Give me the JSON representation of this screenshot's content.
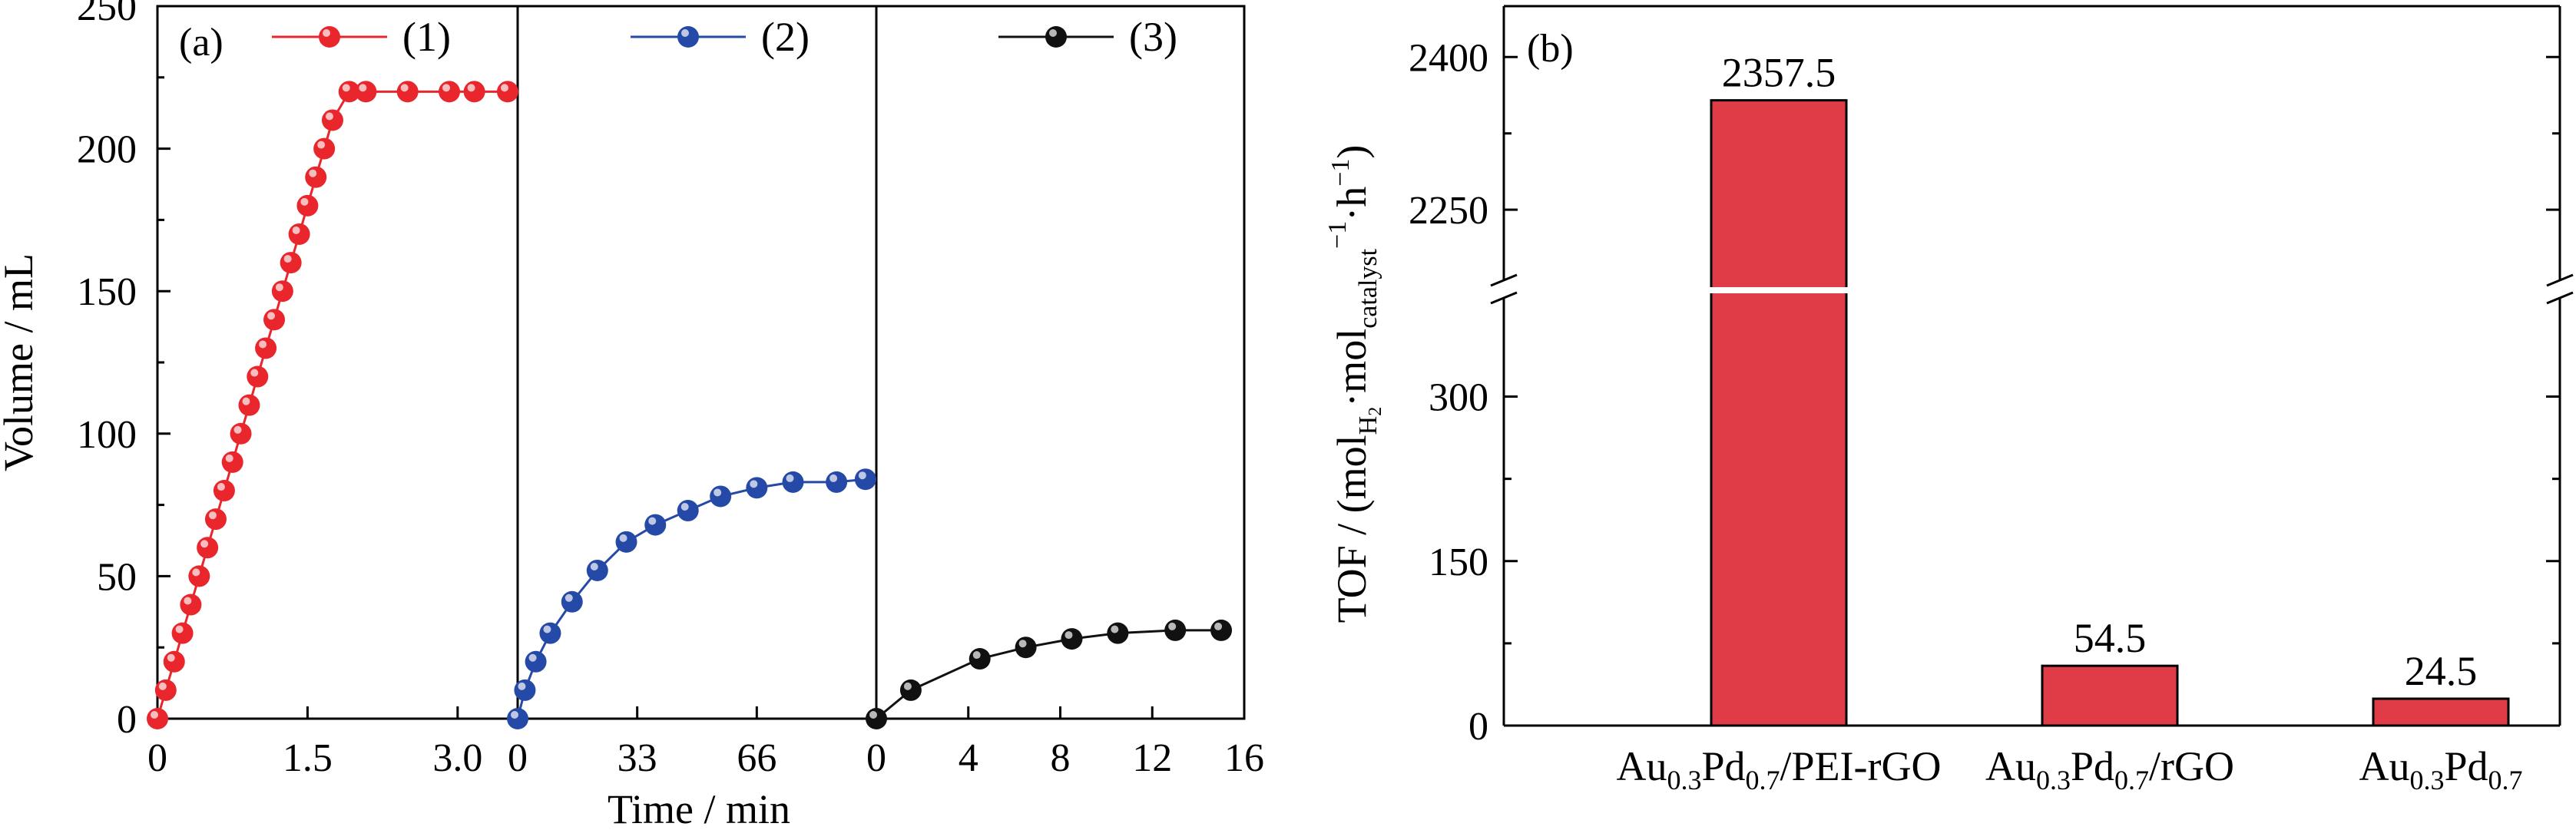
{
  "chart_data": [
    {
      "type": "scatter",
      "panel": "(a)",
      "ylabel": "Volume / mL",
      "xlabel": "Time / min",
      "ylim": [
        0,
        250
      ],
      "yticks": [
        "0",
        "50",
        "100",
        "150",
        "200",
        "250"
      ],
      "subplots": [
        {
          "xlim": [
            0,
            3.6
          ],
          "xticks": [
            "0",
            "1.5",
            "3.0"
          ],
          "xtick_values": [
            0,
            1.5,
            3.0
          ],
          "series": [
            {
              "name": "(1)",
              "color": "#e8262b",
              "x": [
                0,
                0.083,
                0.167,
                0.25,
                0.333,
                0.417,
                0.5,
                0.583,
                0.667,
                0.75,
                0.833,
                0.917,
                1.0,
                1.083,
                1.167,
                1.25,
                1.333,
                1.417,
                1.5,
                1.583,
                1.667,
                1.75,
                1.917,
                2.083,
                2.5,
                2.917,
                3.167,
                3.5
              ],
              "y": [
                0,
                10,
                20,
                30,
                40,
                50,
                60,
                70,
                80,
                90,
                100,
                110,
                120,
                130,
                140,
                150,
                160,
                170,
                180,
                190,
                200,
                210,
                220,
                220,
                220,
                220,
                220,
                220
              ]
            }
          ]
        },
        {
          "xlim": [
            0,
            99
          ],
          "xticks": [
            "0",
            "33",
            "66"
          ],
          "xtick_values": [
            0,
            33,
            66
          ],
          "series": [
            {
              "name": "(2)",
              "color": "#2549a6",
              "x": [
                0,
                2,
                5,
                9,
                15,
                22,
                30,
                38,
                47,
                56,
                66,
                76,
                88,
                96
              ],
              "y": [
                0,
                10,
                20,
                30,
                41,
                52,
                62,
                68,
                73,
                78,
                81,
                83,
                83,
                84
              ]
            }
          ]
        },
        {
          "xlim": [
            0,
            16
          ],
          "xticks": [
            "0",
            "4",
            "8",
            "12",
            "16"
          ],
          "xtick_values": [
            0,
            4,
            8,
            12,
            16
          ],
          "series": [
            {
              "name": "(3)",
              "color": "#111111",
              "x": [
                0,
                1.5,
                4.5,
                6.5,
                8.5,
                10.5,
                13,
                15
              ],
              "y": [
                0,
                10,
                21,
                25,
                28,
                30,
                31,
                31
              ]
            }
          ]
        }
      ]
    },
    {
      "type": "bar",
      "panel": "(b)",
      "ylabel_parts": {
        "p1": "TOF / (mol",
        "s1": "H",
        "s1b": "2",
        "p2": "·mol",
        "s2": "catalyst",
        "sup": "−1",
        "p3": "·h",
        "sup2": "−1",
        "p4": ")"
      },
      "categories": [
        {
          "base": "Au",
          "s1": "0.3",
          "mid": "Pd",
          "s2": "0.7",
          "suffix": "/PEI-rGO"
        },
        {
          "base": "Au",
          "s1": "0.3",
          "mid": "Pd",
          "s2": "0.7",
          "suffix": "/rGO"
        },
        {
          "base": "Au",
          "s1": "0.3",
          "mid": "Pd",
          "s2": "0.7",
          "suffix": ""
        }
      ],
      "values": [
        2357.5,
        54.5,
        24.5
      ],
      "value_labels": [
        "2357.5",
        "54.5",
        "24.5"
      ],
      "bar_color": "#e03c48",
      "broken_axis": {
        "lower_range": [
          0,
          390
        ],
        "upper_range": [
          2180,
          2450
        ],
        "lower_ticks": [
          "0",
          "150",
          "300"
        ],
        "upper_ticks": [
          "2250",
          "2400"
        ]
      }
    }
  ]
}
